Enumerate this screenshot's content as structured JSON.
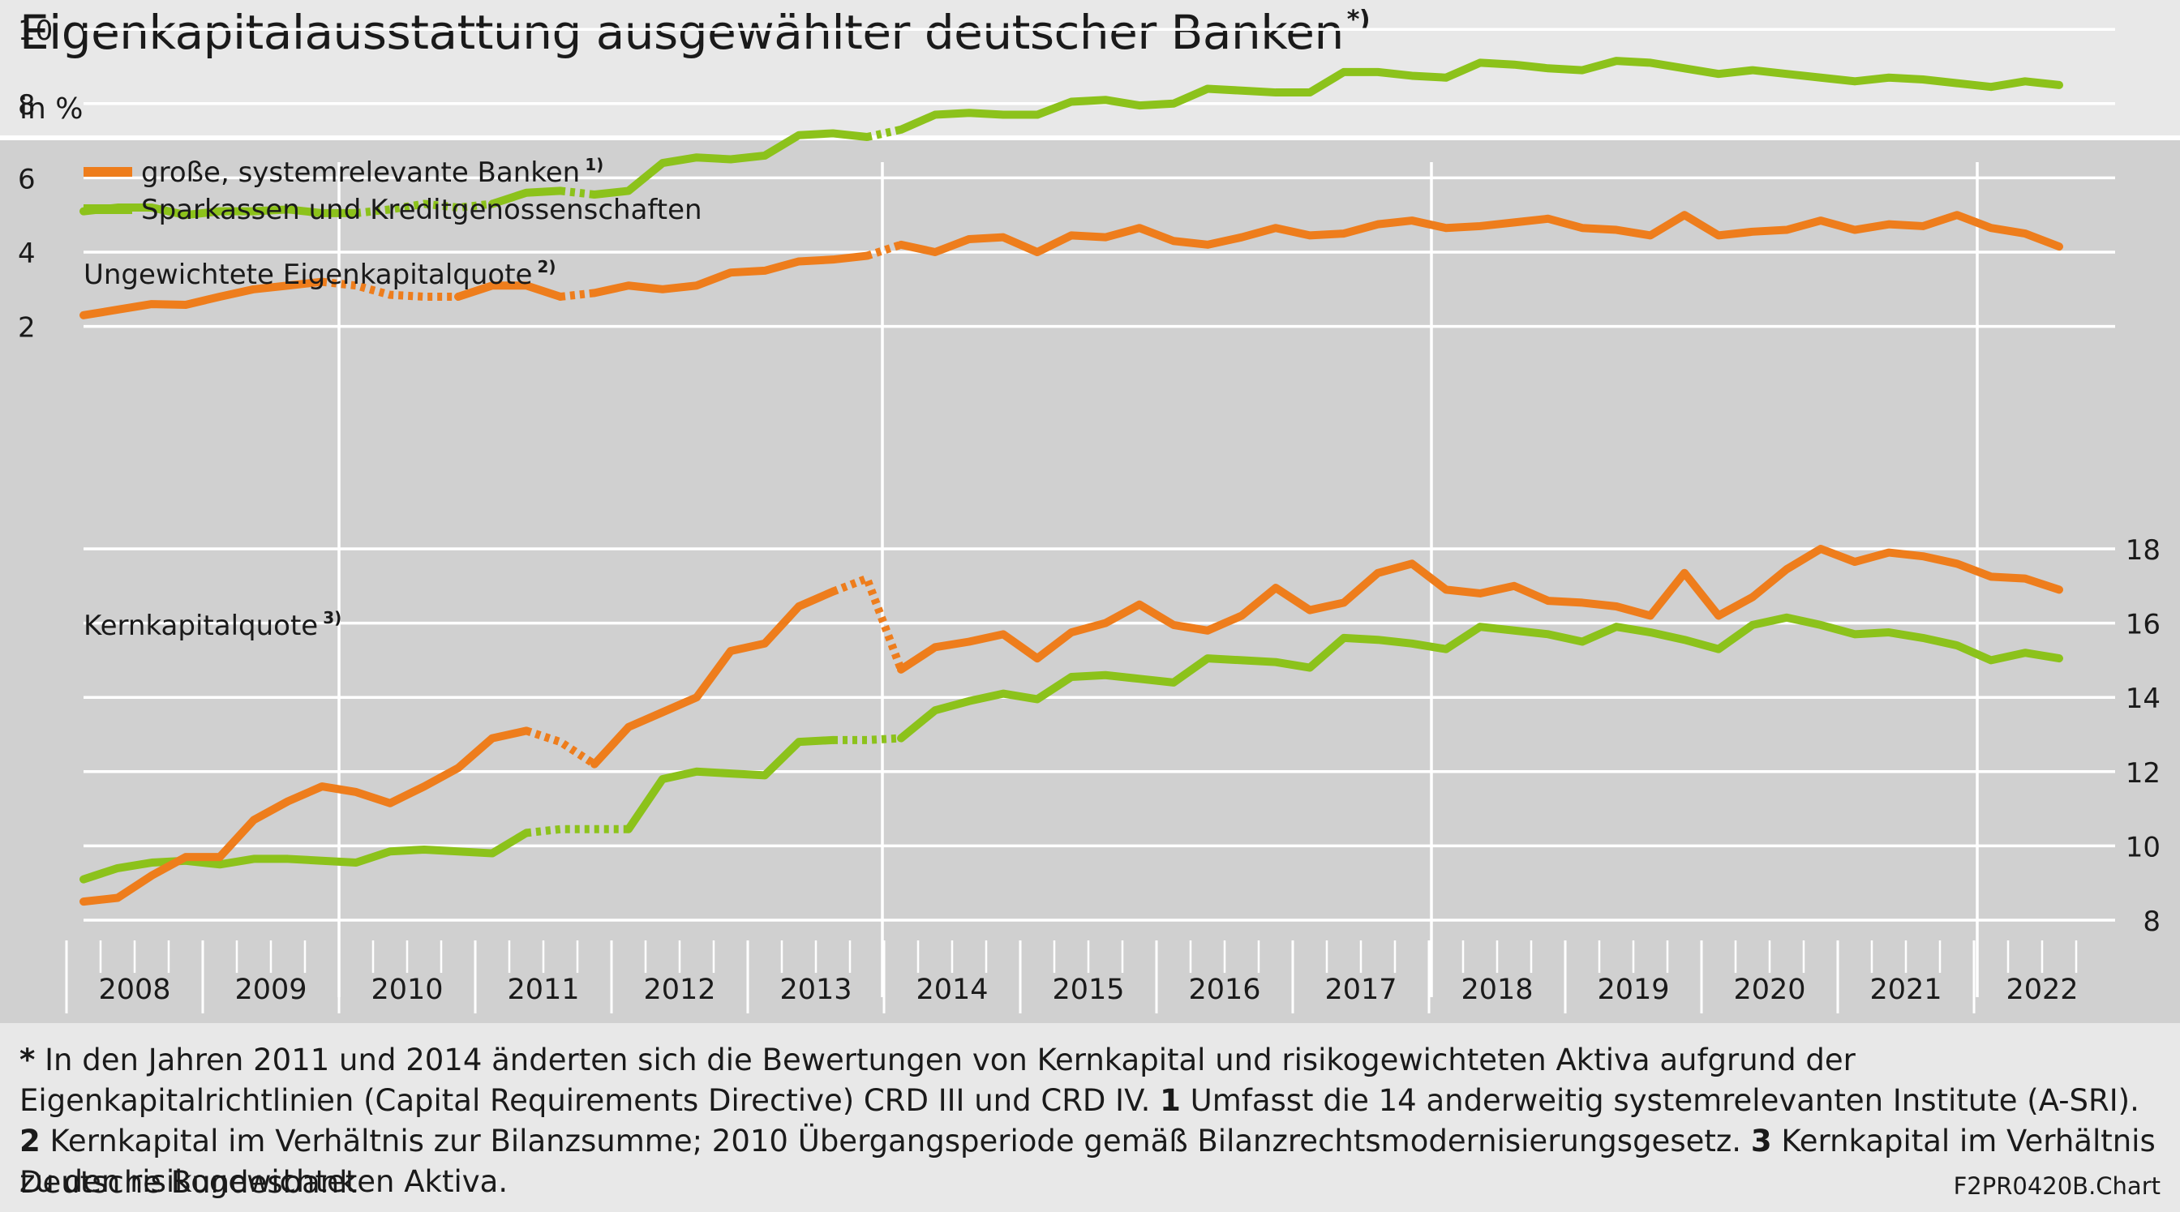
{
  "header": {
    "title": "Eigenkapitalausstattung ausgewählter deutscher Banken",
    "title_marker": "*)",
    "unit": "in %"
  },
  "legend": {
    "placement": "top-left",
    "items": [
      {
        "label": "große, systemrelevante Banken",
        "marker": "1)",
        "color": "#ee7d1c"
      },
      {
        "label": "Sparkassen und Kreditgenossenschaften",
        "marker": "",
        "color": "#8cc21b"
      }
    ]
  },
  "footnotes": [
    {
      "key": "*",
      "text": "In den Jahren 2011 und 2014 änderten sich die Bewertungen von Kernkapital und risikogewichteten Aktiva aufgrund der Eigenkapitalrichtlinien (Capital Requirements Directive) CRD III und CRD IV."
    },
    {
      "key": "1",
      "text": "Umfasst die 14 anderweitig systemrelevanten Institute (A-SRI)."
    },
    {
      "key": "2",
      "text": "Kernkapital im Verhältnis zur Bilanzsumme; 2010 Übergangsperiode gemäß Bilanzrechtsmodernisierungsgesetz."
    },
    {
      "key": "3",
      "text": "Kernkapital im Verhältnis zu den risikogewichteten Aktiva."
    }
  ],
  "source": "Deutsche Bundesbank",
  "chart_code": "F2PR0420B.Chart",
  "colors": {
    "large_banks": "#ee7d1c",
    "savings_coops": "#8cc21b",
    "plot_background": "#d0d0d0",
    "gridline": "#ffffff"
  },
  "chart_data": [
    {
      "type": "line",
      "title": "Ungewichtete Eigenkapitalquote",
      "title_marker": "2)",
      "ylabel": "in %",
      "ylim": [
        0,
        10
      ],
      "yticks": [
        2,
        4,
        6,
        8,
        10
      ],
      "y_axis_side": "left",
      "grid": true,
      "x_label_unit": "year, quarterly observations",
      "years": [
        "2008",
        "2009",
        "2010",
        "2011",
        "2012",
        "2013",
        "2014",
        "2015",
        "2016",
        "2017",
        "2018",
        "2019",
        "2020",
        "2021",
        "2022"
      ],
      "breaks_after_year": [
        "2009",
        "2013",
        "2017",
        "2021"
      ],
      "x": [
        "2008Q1",
        "2008Q2",
        "2008Q3",
        "2008Q4",
        "2009Q1",
        "2009Q2",
        "2009Q3",
        "2009Q4",
        "2010Q1",
        "2010Q2",
        "2010Q3",
        "2010Q4",
        "2011Q1",
        "2011Q2",
        "2011Q3",
        "2011Q4",
        "2012Q1",
        "2012Q2",
        "2012Q3",
        "2012Q4",
        "2013Q1",
        "2013Q2",
        "2013Q3",
        "2013Q4",
        "2014Q1",
        "2014Q2",
        "2014Q3",
        "2014Q4",
        "2015Q1",
        "2015Q2",
        "2015Q3",
        "2015Q4",
        "2016Q1",
        "2016Q2",
        "2016Q3",
        "2016Q4",
        "2017Q1",
        "2017Q2",
        "2017Q3",
        "2017Q4",
        "2018Q1",
        "2018Q2",
        "2018Q3",
        "2018Q4",
        "2019Q1",
        "2019Q2",
        "2019Q3",
        "2019Q4",
        "2020Q1",
        "2020Q2",
        "2020Q3",
        "2020Q4",
        "2021Q1",
        "2021Q2",
        "2021Q3",
        "2021Q4",
        "2022Q1",
        "2022Q2",
        "2022Q3"
      ],
      "series": [
        {
          "name": "große, systemrelevante Banken",
          "color": "#ee7d1c",
          "values": [
            2.3,
            2.45,
            2.6,
            2.58,
            2.8,
            3.0,
            3.1,
            3.2,
            3.1,
            2.85,
            2.8,
            2.8,
            3.1,
            3.1,
            2.8,
            2.9,
            3.1,
            3.0,
            3.1,
            3.45,
            3.5,
            3.75,
            3.8,
            3.9,
            4.2,
            4.0,
            4.35,
            4.4,
            4.0,
            4.45,
            4.4,
            4.65,
            4.3,
            4.2,
            4.4,
            4.65,
            4.45,
            4.5,
            4.75,
            4.85,
            4.65,
            4.7,
            4.8,
            4.9,
            4.65,
            4.6,
            4.45,
            5.0,
            4.45,
            4.55,
            4.6,
            4.85,
            4.6,
            4.75,
            4.7,
            5.0,
            4.65,
            4.5,
            4.15
          ],
          "dashed_segments": [
            [
              7,
              11
            ],
            [
              14,
              15
            ],
            [
              23,
              24
            ]
          ]
        },
        {
          "name": "Sparkassen und Kreditgenossenschaften",
          "color": "#8cc21b",
          "values": [
            5.1,
            5.2,
            5.2,
            5.0,
            5.1,
            5.1,
            5.15,
            5.05,
            5.05,
            5.15,
            5.3,
            5.2,
            5.3,
            5.6,
            5.65,
            5.55,
            5.65,
            6.4,
            6.55,
            6.5,
            6.6,
            7.15,
            7.2,
            7.1,
            7.3,
            7.7,
            7.75,
            7.7,
            7.7,
            8.05,
            8.1,
            7.95,
            8.0,
            8.4,
            8.35,
            8.3,
            8.3,
            8.85,
            8.85,
            8.75,
            8.7,
            9.1,
            9.05,
            8.95,
            8.9,
            9.15,
            9.1,
            8.95,
            8.8,
            8.9,
            8.8,
            8.7,
            8.6,
            8.7,
            8.65,
            8.55,
            8.45,
            8.6,
            8.5
          ],
          "dashed_segments": [
            [
              8,
              12
            ],
            [
              14,
              15
            ],
            [
              23,
              24
            ]
          ]
        }
      ]
    },
    {
      "type": "line",
      "title": "Kernkapitalquote",
      "title_marker": "3)",
      "ylabel": "in %",
      "ylim": [
        8,
        18
      ],
      "yticks": [
        8,
        10,
        12,
        14,
        16,
        18
      ],
      "y_axis_side": "right",
      "grid": true,
      "x": [
        "2008Q1",
        "2008Q2",
        "2008Q3",
        "2008Q4",
        "2009Q1",
        "2009Q2",
        "2009Q3",
        "2009Q4",
        "2010Q1",
        "2010Q2",
        "2010Q3",
        "2010Q4",
        "2011Q1",
        "2011Q2",
        "2011Q3",
        "2011Q4",
        "2012Q1",
        "2012Q2",
        "2012Q3",
        "2012Q4",
        "2013Q1",
        "2013Q2",
        "2013Q3",
        "2013Q4",
        "2014Q1",
        "2014Q2",
        "2014Q3",
        "2014Q4",
        "2015Q1",
        "2015Q2",
        "2015Q3",
        "2015Q4",
        "2016Q1",
        "2016Q2",
        "2016Q3",
        "2016Q4",
        "2017Q1",
        "2017Q2",
        "2017Q3",
        "2017Q4",
        "2018Q1",
        "2018Q2",
        "2018Q3",
        "2018Q4",
        "2019Q1",
        "2019Q2",
        "2019Q3",
        "2019Q4",
        "2020Q1",
        "2020Q2",
        "2020Q3",
        "2020Q4",
        "2021Q1",
        "2021Q2",
        "2021Q3",
        "2021Q4",
        "2022Q1",
        "2022Q2",
        "2022Q3"
      ],
      "series": [
        {
          "name": "große, systemrelevante Banken",
          "color": "#ee7d1c",
          "values": [
            8.5,
            8.6,
            9.2,
            9.7,
            9.7,
            10.7,
            11.2,
            11.6,
            11.45,
            11.15,
            11.6,
            12.1,
            12.9,
            13.1,
            12.8,
            12.2,
            13.2,
            13.6,
            14.0,
            15.25,
            15.45,
            16.45,
            16.85,
            17.2,
            14.75,
            15.35,
            15.5,
            15.7,
            15.05,
            15.75,
            16.0,
            16.5,
            15.95,
            15.8,
            16.2,
            16.95,
            16.35,
            16.55,
            17.35,
            17.6,
            16.9,
            16.8,
            17.0,
            16.6,
            16.55,
            16.45,
            16.2,
            17.35,
            16.2,
            16.7,
            17.45,
            18.0,
            17.65,
            17.9,
            17.8,
            17.6,
            17.25,
            17.2,
            16.9
          ],
          "dashed_segments": [
            [
              13,
              15
            ],
            [
              22,
              24
            ]
          ]
        },
        {
          "name": "Sparkassen und Kreditgenossenschaften",
          "color": "#8cc21b",
          "values": [
            9.1,
            9.4,
            9.55,
            9.6,
            9.5,
            9.65,
            9.65,
            9.6,
            9.55,
            9.85,
            9.9,
            9.85,
            9.8,
            10.35,
            10.45,
            10.45,
            10.45,
            11.8,
            12.0,
            11.95,
            11.9,
            12.8,
            12.85,
            12.85,
            12.9,
            13.65,
            13.9,
            14.1,
            13.95,
            14.55,
            14.6,
            14.5,
            14.4,
            15.05,
            15.0,
            14.95,
            14.8,
            15.6,
            15.55,
            15.45,
            15.3,
            15.9,
            15.8,
            15.7,
            15.5,
            15.9,
            15.75,
            15.55,
            15.3,
            15.95,
            16.15,
            15.95,
            15.7,
            15.75,
            15.6,
            15.4,
            15.0,
            15.2,
            15.05
          ],
          "dashed_segments": [
            [
              13,
              16
            ],
            [
              22,
              24
            ]
          ]
        }
      ]
    }
  ]
}
